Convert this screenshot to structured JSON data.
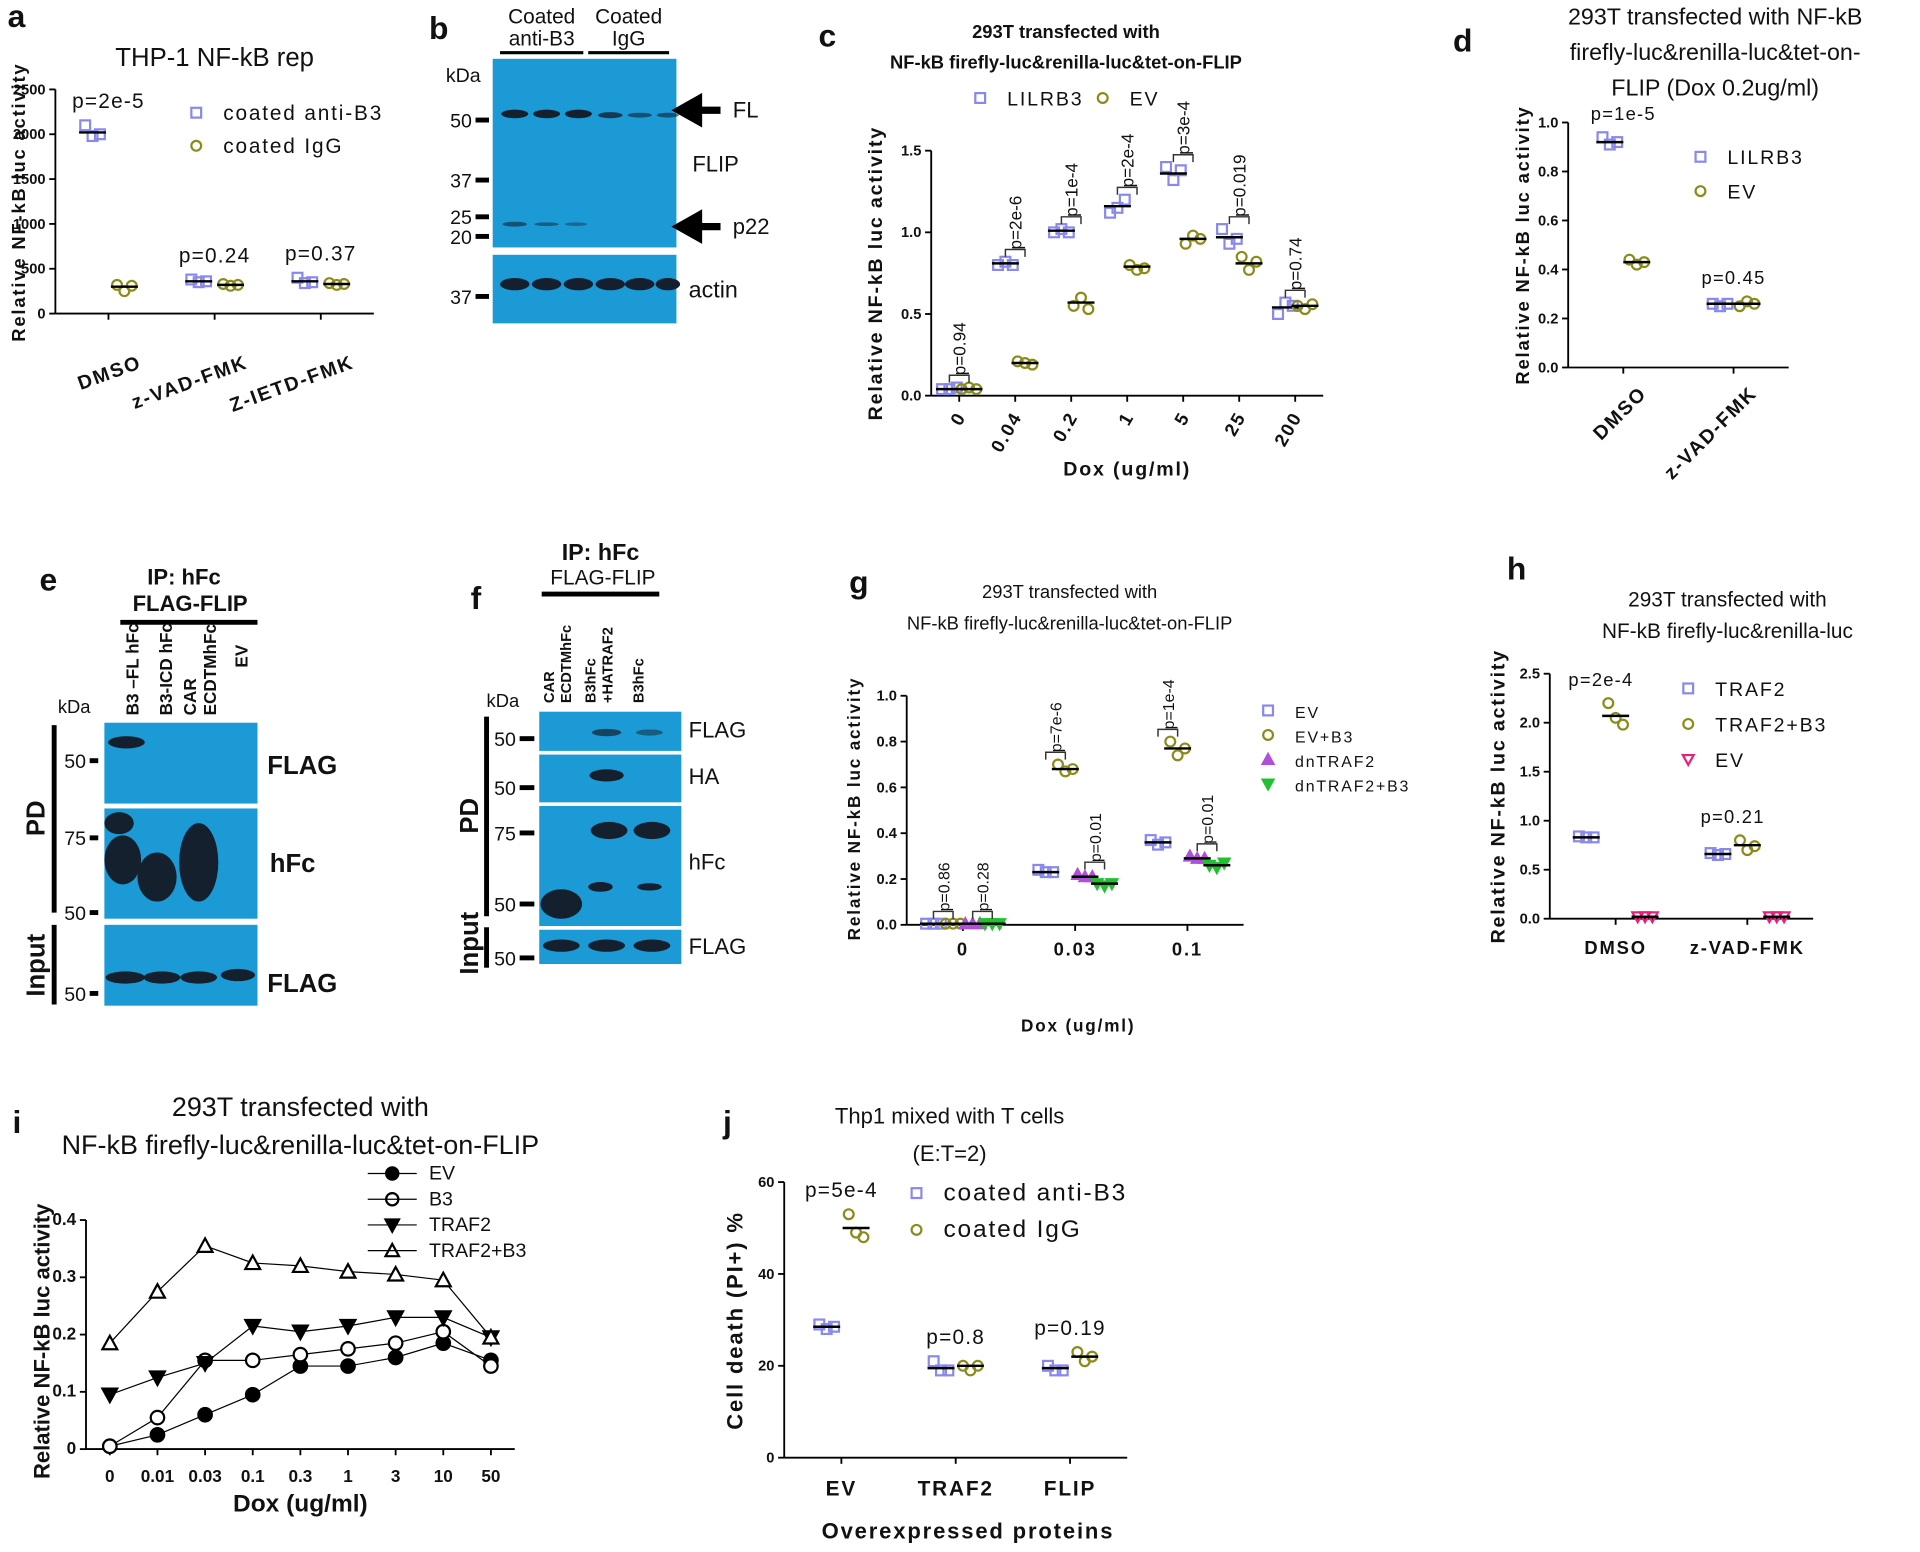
{
  "chart_data": [
    {
      "type": "dot",
      "panel": "a",
      "title": [
        "THP-1 NF-kB rep"
      ],
      "y_label": "Relative NF-kB luc activity",
      "categories": [
        "DMSO",
        "z-VAD-FMK",
        "Z-IETD-FMK"
      ],
      "series": [
        {
          "name": "coated anti-B3",
          "color": "#8888ee",
          "marker": "square",
          "filled": false,
          "values": [
            2020,
            360,
            360
          ],
          "points": [
            [
              2100,
              1980,
              2000
            ],
            [
              380,
              350,
              360
            ],
            [
              400,
              340,
              350
            ]
          ]
        },
        {
          "name": "coated IgG",
          "color": "#8b8b1a",
          "marker": "circle",
          "filled": false,
          "values": [
            300,
            320,
            330
          ],
          "points": [
            [
              320,
              250,
              310
            ],
            [
              330,
              310,
              320
            ],
            [
              340,
              320,
              330
            ]
          ]
        }
      ],
      "p_labels": [
        [
          "p=2e-5"
        ],
        [
          "p=0.24"
        ],
        [
          "p=0.37"
        ]
      ],
      "ylim": [
        0,
        2500
      ],
      "yticks": [
        0,
        500,
        1000,
        1500,
        2000,
        2500
      ]
    },
    {
      "type": "dot",
      "panel": "c",
      "title": [
        "293T transfected with",
        "NF-kB firefly-luc&renilla-luc&tet-on-FLIP"
      ],
      "y_label": "Relative NF-kB luc activity",
      "x_label": "Dox (ug/ml)",
      "categories": [
        "0",
        "0.04",
        "0.2",
        "1",
        "5",
        "25",
        "200"
      ],
      "series": [
        {
          "name": "LILRB3",
          "color": "#8888ee",
          "marker": "square",
          "filled": false,
          "values": [
            0.04,
            0.81,
            1.01,
            1.16,
            1.36,
            0.97,
            0.54
          ],
          "points": [
            [
              0.04,
              0.04,
              0.05
            ],
            [
              0.8,
              0.82,
              0.8
            ],
            [
              1.0,
              1.02,
              1.0
            ],
            [
              1.12,
              1.15,
              1.2
            ],
            [
              1.4,
              1.32,
              1.38
            ],
            [
              1.02,
              0.93,
              0.96
            ],
            [
              0.5,
              0.57,
              0.55
            ]
          ]
        },
        {
          "name": "EV",
          "color": "#8b8b1a",
          "marker": "circle",
          "filled": false,
          "values": [
            0.04,
            0.2,
            0.57,
            0.79,
            0.96,
            0.81,
            0.55
          ],
          "points": [
            [
              0.04,
              0.05,
              0.04
            ],
            [
              0.21,
              0.2,
              0.19
            ],
            [
              0.55,
              0.6,
              0.53
            ],
            [
              0.8,
              0.77,
              0.78
            ],
            [
              0.93,
              0.98,
              0.96
            ],
            [
              0.85,
              0.77,
              0.82
            ],
            [
              0.55,
              0.53,
              0.56
            ]
          ]
        }
      ],
      "p_labels": [
        [
          "p=0.94"
        ],
        [
          "p=2e-6"
        ],
        [
          "p=1e-4"
        ],
        [
          "p=2e-4"
        ],
        [
          "p=3e-4"
        ],
        [
          "p=0.019"
        ],
        [
          "p=0.74"
        ]
      ],
      "ylim": [
        0,
        1.5
      ],
      "yticks": [
        {
          "value": 0,
          "label": "0.0"
        },
        0.5,
        {
          "value": 1,
          "label": "1.0"
        },
        1.5
      ]
    },
    {
      "type": "dot",
      "panel": "d",
      "title": [
        "293T transfected with NF-kB",
        "firefly-luc&renilla-luc&tet-on-",
        "FLIP (Dox 0.2ug/ml)"
      ],
      "y_label": "Relative NF-kB luc activity",
      "categories": [
        "DMSO",
        "z-VAD-FMK"
      ],
      "series": [
        {
          "name": "LILRB3",
          "color": "#8888ee",
          "marker": "square",
          "filled": false,
          "values": [
            0.92,
            0.26
          ],
          "points": [
            [
              0.94,
              0.91,
              0.92
            ],
            [
              0.26,
              0.25,
              0.26
            ]
          ]
        },
        {
          "name": "EV",
          "color": "#8b8b1a",
          "marker": "circle",
          "filled": false,
          "values": [
            0.43,
            0.26
          ],
          "points": [
            [
              0.44,
              0.42,
              0.43
            ],
            [
              0.25,
              0.27,
              0.26
            ]
          ]
        }
      ],
      "p_labels": [
        [
          "p=1e-5"
        ],
        [
          "p=0.45"
        ]
      ],
      "ylim": [
        0,
        1
      ],
      "yticks": [
        {
          "value": 0,
          "label": "0.0"
        },
        0.2,
        0.4,
        0.6,
        0.8,
        {
          "value": 1,
          "label": "1.0"
        }
      ]
    },
    {
      "type": "dot",
      "panel": "g",
      "title": [
        "293T transfected with",
        "NF-kB firefly-luc&renilla-luc&tet-on-FLIP"
      ],
      "y_label": "Relative NF-kB luc activity",
      "x_label": "Dox (ug/ml)",
      "categories": [
        "0",
        "0.03",
        "0.1"
      ],
      "series": [
        {
          "name": "EV",
          "color": "#8888ee",
          "marker": "square",
          "filled": false,
          "values": [
            0.005,
            0.23,
            0.36
          ],
          "points": [
            [
              0.005,
              0.005,
              0.005
            ],
            [
              0.24,
              0.23,
              0.23
            ],
            [
              0.37,
              0.35,
              0.36
            ]
          ]
        },
        {
          "name": "EV+B3",
          "color": "#8b8b1a",
          "marker": "circle",
          "filled": false,
          "values": [
            0.005,
            0.68,
            0.77
          ],
          "points": [
            [
              0.005,
              0.005,
              0.005
            ],
            [
              0.7,
              0.67,
              0.68
            ],
            [
              0.8,
              0.74,
              0.77
            ]
          ]
        },
        {
          "name": "dnTRAF2",
          "color": "#b050d8",
          "marker": "triangle",
          "filled": true,
          "values": [
            0.005,
            0.21,
            0.29
          ],
          "points": [
            [
              0.005,
              0.005,
              0.005
            ],
            [
              0.22,
              0.21,
              0.21
            ],
            [
              0.3,
              0.29,
              0.29
            ]
          ]
        },
        {
          "name": "dnTRAF2+B3",
          "color": "#20c030",
          "marker": "triangle-down",
          "filled": true,
          "values": [
            0.005,
            0.18,
            0.26
          ],
          "points": [
            [
              0.005,
              0.005,
              0.005
            ],
            [
              0.18,
              0.17,
              0.18
            ],
            [
              0.26,
              0.25,
              0.27
            ]
          ]
        }
      ],
      "p_labels": [
        [
          "p=0.86",
          "p=0.28"
        ],
        [
          "p=7e-6",
          "p=0.01"
        ],
        [
          "p=1e-4",
          "p=0.01"
        ]
      ],
      "ylim": [
        0,
        1
      ],
      "yticks": [
        {
          "value": 0,
          "label": "0.0"
        },
        0.2,
        0.4,
        0.6,
        0.8,
        {
          "value": 1,
          "label": "1.0"
        }
      ]
    },
    {
      "type": "dot",
      "panel": "h",
      "title": [
        "293T transfected with",
        "NF-kB firefly-luc&renilla-luc"
      ],
      "y_label": "Relative NF-kB luc activity",
      "categories": [
        "DMSO",
        "z-VAD-FMK"
      ],
      "series": [
        {
          "name": "TRAF2",
          "color": "#8888ee",
          "marker": "square",
          "filled": false,
          "values": [
            0.83,
            0.66
          ],
          "points": [
            [
              0.84,
              0.83,
              0.83
            ],
            [
              0.67,
              0.65,
              0.66
            ]
          ]
        },
        {
          "name": "TRAF2+B3",
          "color": "#8b8b1a",
          "marker": "circle",
          "filled": false,
          "values": [
            2.07,
            0.75
          ],
          "points": [
            [
              2.2,
              2.05,
              1.98
            ],
            [
              0.8,
              0.7,
              0.74
            ]
          ]
        },
        {
          "name": "EV",
          "color": "#e8207a",
          "marker": "triangle-down",
          "filled": false,
          "values": [
            0.02,
            0.02
          ],
          "points": [
            [
              0.02,
              0.02,
              0.02
            ],
            [
              0.02,
              0.02,
              0.02
            ]
          ]
        }
      ],
      "p_labels": [
        [
          "p=2e-4"
        ],
        [
          "p=0.21"
        ]
      ],
      "ylim": [
        0,
        2.5
      ],
      "yticks": [
        {
          "value": 0,
          "label": "0.0"
        },
        0.5,
        {
          "value": 1,
          "label": "1.0"
        },
        1.5,
        {
          "value": 2,
          "label": "2.0"
        },
        2.5
      ]
    },
    {
      "type": "line",
      "panel": "i",
      "title": [
        "293T transfected with",
        "NF-kB firefly-luc&renilla-luc&tet-on-FLIP"
      ],
      "y_label": "Relative NF-kB luc activity",
      "x_label": "Dox (ug/ml)",
      "categories": [
        "0",
        "0.01",
        "0.03",
        "0.1",
        "0.3",
        "1",
        "3",
        "10",
        "50"
      ],
      "series": [
        {
          "name": "EV",
          "color": "#000000",
          "marker": "circle",
          "filled": true,
          "values": [
            0.005,
            0.025,
            0.06,
            0.095,
            0.145,
            0.145,
            0.16,
            0.185,
            0.155
          ]
        },
        {
          "name": "B3",
          "color": "#000000",
          "marker": "circle",
          "filled": false,
          "values": [
            0.005,
            0.055,
            0.155,
            0.155,
            0.165,
            0.175,
            0.185,
            0.205,
            0.145
          ]
        },
        {
          "name": "TRAF2",
          "color": "#000000",
          "marker": "triangle-down",
          "filled": true,
          "values": [
            0.095,
            0.125,
            0.15,
            0.215,
            0.205,
            0.215,
            0.23,
            0.23,
            0.195
          ]
        },
        {
          "name": "TRAF2+B3",
          "color": "#000000",
          "marker": "triangle",
          "filled": false,
          "values": [
            0.185,
            0.275,
            0.355,
            0.325,
            0.32,
            0.31,
            0.305,
            0.295,
            0.195
          ]
        }
      ],
      "ylim": [
        0,
        0.4
      ],
      "yticks": [
        0,
        0.1,
        0.2,
        0.3,
        0.4
      ]
    },
    {
      "type": "dot",
      "panel": "j",
      "title": [
        "Thp1 mixed with T cells",
        "(E:T=2)"
      ],
      "y_label": "Cell death (PI+) %",
      "x_label": "Overexpressed proteins",
      "categories": [
        "EV",
        "TRAF2",
        "FLIP"
      ],
      "series": [
        {
          "name": "coated anti-B3",
          "color": "#8888ee",
          "marker": "square",
          "filled": false,
          "values": [
            28.5,
            19.5,
            19.5
          ],
          "points": [
            [
              29,
              28,
              28.5
            ],
            [
              21,
              19,
              19
            ],
            [
              20,
              19,
              19
            ]
          ]
        },
        {
          "name": "coated IgG",
          "color": "#8b8b1a",
          "marker": "circle",
          "filled": false,
          "values": [
            50,
            20,
            22
          ],
          "points": [
            [
              53,
              49,
              48
            ],
            [
              20,
              19,
              20
            ],
            [
              23,
              21,
              22
            ]
          ]
        }
      ],
      "p_labels": [
        [
          "p=5e-4"
        ],
        [
          "p=0.8"
        ],
        [
          "p=0.19"
        ]
      ],
      "ylim": [
        0,
        60
      ],
      "yticks": [
        0,
        20,
        40,
        60
      ]
    }
  ],
  "blots": {
    "b": {
      "panel": "b",
      "lanes": [
        [
          "Coated",
          "anti-B3"
        ],
        [
          "Coated",
          "IgG"
        ]
      ],
      "kda": "kDa",
      "markers": [
        "50",
        "37",
        "25",
        "20",
        "37"
      ],
      "labels": [
        "FL",
        "FLIP",
        "p22",
        "actin"
      ]
    },
    "e": {
      "panel": "e",
      "header": [
        "IP: hFc",
        "FLAG-FLIP"
      ],
      "lanes": [
        [
          "B3 –FL hFc"
        ],
        [
          "B3-ICD hFc"
        ],
        [
          "CAR",
          "ECDTMhFc"
        ],
        [
          "EV"
        ]
      ],
      "kda": "kDa",
      "markers": [
        "50",
        "75",
        "50",
        "50"
      ],
      "groups": [
        "PD",
        "Input"
      ],
      "labels": [
        "FLAG",
        "hFc",
        "FLAG"
      ]
    },
    "f": {
      "panel": "f",
      "header": [
        "IP: hFc",
        "FLAG-FLIP"
      ],
      "lanes": [
        [
          "CAR",
          "ECDTMhFc"
        ],
        [
          "B3hFc",
          "+HATRAF2"
        ],
        [
          "B3hFc"
        ]
      ],
      "kda": "kDa",
      "markers": [
        "50",
        "50",
        "75",
        "50",
        "50"
      ],
      "groups": [
        "PD",
        "Input"
      ],
      "labels": [
        "FLAG",
        "HA",
        "hFc",
        "FLAG"
      ]
    }
  }
}
